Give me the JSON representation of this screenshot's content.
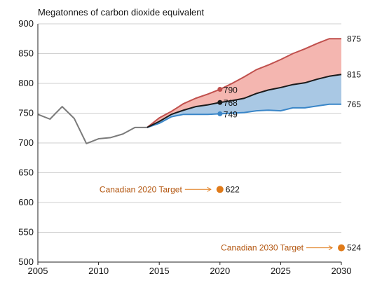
{
  "chart_data": {
    "type": "line",
    "ylabel": "Megatonnes of carbon dioxide equivalent",
    "xlim": [
      2005,
      2030
    ],
    "ylim": [
      500,
      900
    ],
    "x_ticks": [
      2005,
      2010,
      2015,
      2020,
      2025,
      2030
    ],
    "y_ticks": [
      500,
      550,
      600,
      650,
      700,
      750,
      800,
      850,
      900
    ],
    "grid": "horizontal",
    "colors": {
      "historical": "#7a7a7a",
      "high": "#c0504d",
      "reference": "#1a1a1a",
      "low": "#3a86c8",
      "upper_band": "#f4b6b0",
      "lower_band": "#a9c8e4",
      "target": "#e07b1a",
      "target_text": "#b3560f"
    },
    "series": [
      {
        "key": "historical",
        "x": [
          2005,
          2006,
          2007,
          2008,
          2009,
          2010,
          2011,
          2012,
          2013,
          2014
        ],
        "values": [
          748,
          740,
          761,
          741,
          699,
          707,
          709,
          715,
          726,
          726
        ]
      },
      {
        "key": "high",
        "x": [
          2014,
          2015,
          2016,
          2017,
          2018,
          2019,
          2020,
          2021,
          2022,
          2023,
          2024,
          2025,
          2026,
          2027,
          2028,
          2029,
          2030
        ],
        "values": [
          726,
          742,
          753,
          766,
          775,
          782,
          790,
          800,
          811,
          823,
          831,
          840,
          850,
          858,
          867,
          875,
          875
        ]
      },
      {
        "key": "reference",
        "x": [
          2014,
          2015,
          2016,
          2017,
          2018,
          2019,
          2020,
          2021,
          2022,
          2023,
          2024,
          2025,
          2026,
          2027,
          2028,
          2029,
          2030
        ],
        "values": [
          726,
          736,
          748,
          755,
          761,
          764,
          768,
          771,
          775,
          783,
          789,
          793,
          798,
          801,
          807,
          812,
          815
        ]
      },
      {
        "key": "low",
        "x": [
          2014,
          2015,
          2016,
          2017,
          2018,
          2019,
          2020,
          2021,
          2022,
          2023,
          2024,
          2025,
          2026,
          2027,
          2028,
          2029,
          2030
        ],
        "values": [
          726,
          733,
          744,
          748,
          748,
          748,
          749,
          750,
          751,
          754,
          755,
          754,
          759,
          759,
          762,
          765,
          765
        ]
      }
    ],
    "end_labels": [
      {
        "x": 2030,
        "value": 875,
        "text": "875"
      },
      {
        "x": 2030,
        "value": 815,
        "text": "815"
      },
      {
        "x": 2030,
        "value": 765,
        "text": "765"
      }
    ],
    "points_2020": [
      {
        "x": 2020,
        "value": 790,
        "text": "790",
        "key": "high"
      },
      {
        "x": 2020,
        "value": 768,
        "text": "768",
        "key": "reference"
      },
      {
        "x": 2020,
        "value": 749,
        "text": "749",
        "key": "low"
      }
    ],
    "targets": [
      {
        "label": "Canadian 2020 Target",
        "x": 2020,
        "value": 622,
        "text": "622"
      },
      {
        "label": "Canadian 2030 Target",
        "x": 2030,
        "value": 524,
        "text": "524"
      }
    ]
  }
}
